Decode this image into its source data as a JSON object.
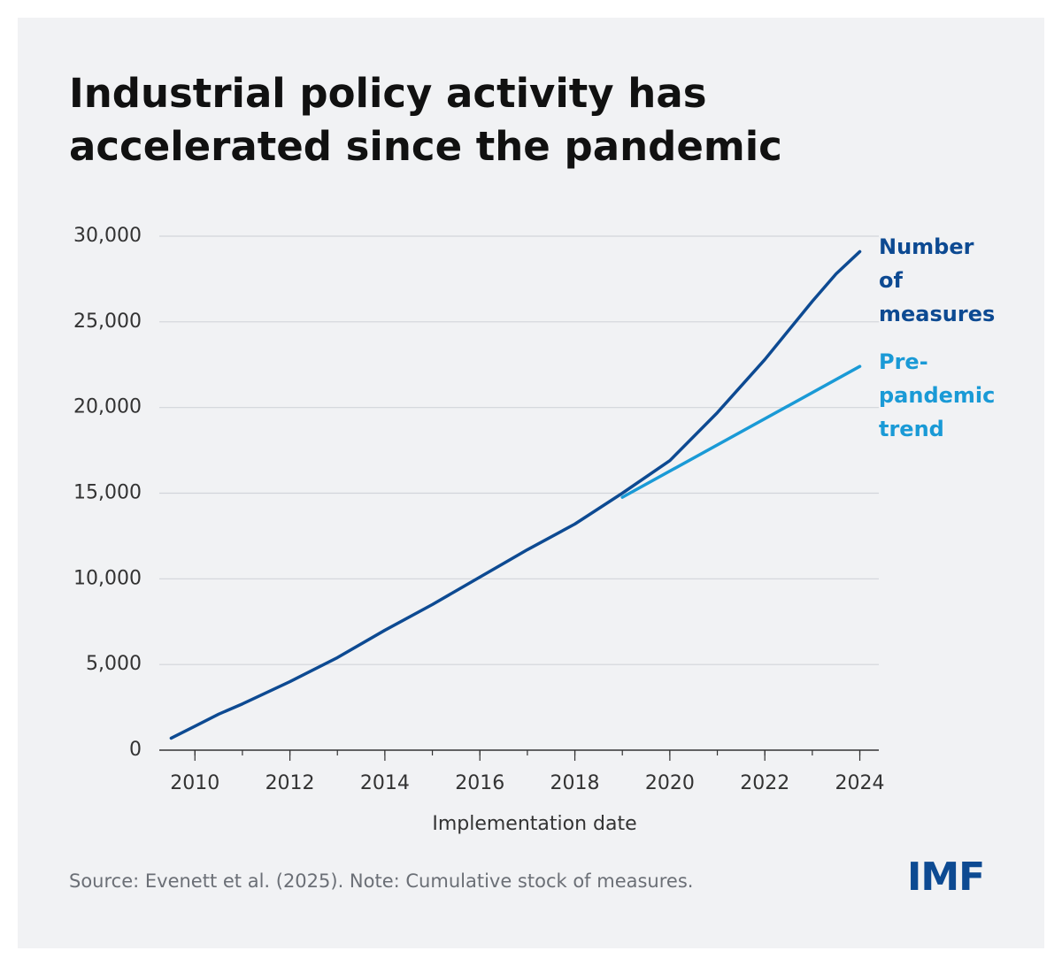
{
  "chart_data": {
    "type": "line",
    "title": "Industrial policy activity has accelerated since the pandemic",
    "x_label": "Implementation date",
    "source": "Source: Evenett et al. (2025). Note: Cumulative stock of measures.",
    "logo": "IMF",
    "xlim": [
      2009.25,
      2024.4
    ],
    "xticks": [
      2010,
      2012,
      2014,
      2016,
      2018,
      2020,
      2022,
      2024
    ],
    "ylim": [
      0,
      30000
    ],
    "yticks": [
      0,
      {
        "value": 5000,
        "label": "5,000"
      },
      {
        "value": 10000,
        "label": "10,000"
      },
      {
        "value": 15000,
        "label": "15,000"
      },
      {
        "value": 20000,
        "label": "20,000"
      },
      {
        "value": 25000,
        "label": "25,000"
      },
      {
        "value": 30000,
        "label": "30,000"
      }
    ],
    "grid": true,
    "series": [
      {
        "name": "Number of measures",
        "color": "#0d4a92",
        "x": [
          2009.5,
          2010,
          2010.5,
          2011,
          2012,
          2013,
          2014,
          2015,
          2016,
          2017,
          2018,
          2019,
          2020,
          2021,
          2022,
          2023,
          2023.5,
          2024
        ],
        "values": [
          700,
          1400,
          2100,
          2700,
          4000,
          5400,
          7000,
          8500,
          10100,
          11700,
          13200,
          15000,
          16900,
          19700,
          22800,
          26200,
          27800,
          29100
        ]
      },
      {
        "name": "Pre-pandemic trend",
        "color": "#1a9ad6",
        "x": [
          2019,
          2024
        ],
        "values": [
          14760,
          22400
        ]
      }
    ]
  }
}
